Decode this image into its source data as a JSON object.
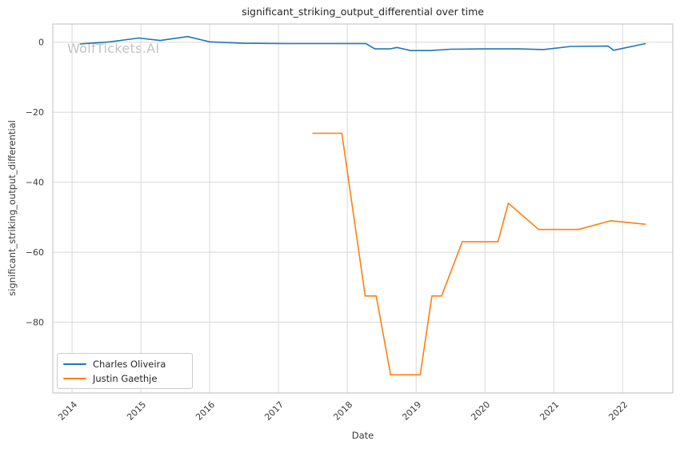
{
  "watermark": "WolfTickets.AI",
  "chart_data": {
    "type": "line",
    "title": "significant_striking_output_differential over time",
    "xlabel": "Date",
    "ylabel": "significant_striking_output_differential",
    "grid": true,
    "legend_position": "lower left",
    "xlim": [
      2013.72,
      2022.73
    ],
    "ylim": [
      -100.2,
      5.2
    ],
    "x_ticks": {
      "values": [
        2014,
        2015,
        2016,
        2017,
        2018,
        2019,
        2020,
        2021,
        2022
      ],
      "labels": [
        "2014",
        "2015",
        "2016",
        "2017",
        "2018",
        "2019",
        "2020",
        "2021",
        "2022"
      ]
    },
    "y_ticks": {
      "values": [
        0,
        -20,
        -40,
        -60,
        -80
      ],
      "labels": [
        "0",
        "−20",
        "−40",
        "−60",
        "−80"
      ]
    },
    "series": [
      {
        "name": "Charles Oliveira",
        "color": "#1f77b4",
        "x": [
          2014.12,
          2014.55,
          2014.97,
          2015.28,
          2015.68,
          2016.0,
          2016.5,
          2017.1,
          2017.6,
          2018.27,
          2018.4,
          2018.62,
          2018.72,
          2018.92,
          2019.2,
          2019.5,
          2020.0,
          2020.5,
          2020.85,
          2021.25,
          2021.79,
          2021.87,
          2022.33
        ],
        "y": [
          -0.5,
          0.1,
          1.2,
          0.5,
          1.6,
          0.1,
          -0.3,
          -0.4,
          -0.4,
          -0.4,
          -1.9,
          -1.9,
          -1.5,
          -2.4,
          -2.4,
          -2.0,
          -1.9,
          -1.9,
          -2.1,
          -1.2,
          -1.1,
          -2.3,
          -0.4
        ]
      },
      {
        "name": "Justin Gaethje",
        "color": "#ff7f0e",
        "x": [
          2017.5,
          2017.92,
          2018.26,
          2018.42,
          2018.63,
          2019.06,
          2019.23,
          2019.37,
          2019.67,
          2020.19,
          2020.34,
          2020.78,
          2021.36,
          2021.83,
          2022.33
        ],
        "y": [
          -26,
          -26,
          -72.5,
          -72.5,
          -95,
          -95,
          -72.5,
          -72.5,
          -57,
          -57,
          -46,
          -53.5,
          -53.5,
          -51,
          -52
        ]
      }
    ]
  },
  "style": {
    "grid_color": "#d9d9d9",
    "border_color": "#cccccc",
    "tick_label_color": "#3a3a3a",
    "title_color": "#262626",
    "watermark_color": "#c3c3c3"
  }
}
